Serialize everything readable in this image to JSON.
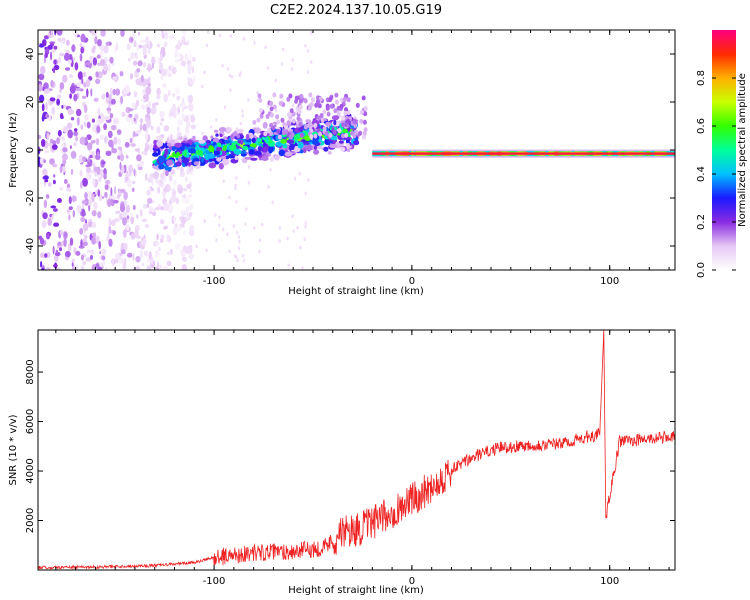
{
  "figure": {
    "title": "C2E2.2024.137.10.05.G19"
  },
  "chart_data": [
    {
      "type": "heatmap",
      "xlabel": "Height of straight line (km)",
      "ylabel": "Frequency (Hz)",
      "xlim": [
        -189,
        133
      ],
      "ylim": [
        -50,
        50
      ],
      "xticks": [
        -100,
        0,
        100
      ],
      "yticks": [
        -40,
        -20,
        0,
        20,
        40
      ],
      "colorbar": {
        "label": "Normalized spectral amplitude",
        "range": [
          0,
          1
        ],
        "ticks": [
          "0.0",
          "0.2",
          "0.4",
          "0.6",
          "0.8"
        ],
        "colormap": [
          "#ffffff",
          "#e6c8f5",
          "#8a2be2",
          "#1a1aff",
          "#00c0ff",
          "#00ff99",
          "#33ff00",
          "#c8ff00",
          "#ffb000",
          "#ff2a00",
          "#ff0080"
        ]
      },
      "features": [
        {
          "region": "broadband noise",
          "x_range": [
            -189,
            -110
          ],
          "freq_range": [
            -50,
            50
          ],
          "amplitude": 0.15
        },
        {
          "region": "rising tone",
          "x_range": [
            -130,
            -28
          ],
          "freq_start": -3,
          "freq_end": 8,
          "amplitude": 0.45
        },
        {
          "region": "direct signal",
          "x_range": [
            -20,
            133
          ],
          "freq": -1.5,
          "amplitude": 0.95
        }
      ]
    },
    {
      "type": "line",
      "xlabel": "Height of straight line (km)",
      "ylabel": "SNR (10 * v/v)",
      "xlim": [
        -189,
        133
      ],
      "ylim": [
        0,
        9700
      ],
      "xticks": [
        -100,
        0,
        100
      ],
      "yticks": [
        2000,
        4000,
        6000,
        8000
      ],
      "series": [
        {
          "color": "#ee2222",
          "points": [
            [
              -189,
              100
            ],
            [
              -160,
              120
            ],
            [
              -130,
              180
            ],
            [
              -110,
              300
            ],
            [
              -100,
              500
            ],
            [
              -80,
              700
            ],
            [
              -60,
              750
            ],
            [
              -45,
              900
            ],
            [
              -35,
              1500
            ],
            [
              -25,
              1700
            ],
            [
              -15,
              2100
            ],
            [
              -5,
              2600
            ],
            [
              5,
              3100
            ],
            [
              15,
              3700
            ],
            [
              25,
              4300
            ],
            [
              35,
              4700
            ],
            [
              45,
              4950
            ],
            [
              60,
              5050
            ],
            [
              75,
              5100
            ],
            [
              85,
              5300
            ],
            [
              95,
              5500
            ],
            [
              97,
              9700
            ],
            [
              98,
              2100
            ],
            [
              105,
              5200
            ],
            [
              120,
              5300
            ],
            [
              133,
              5400
            ]
          ]
        }
      ]
    }
  ]
}
